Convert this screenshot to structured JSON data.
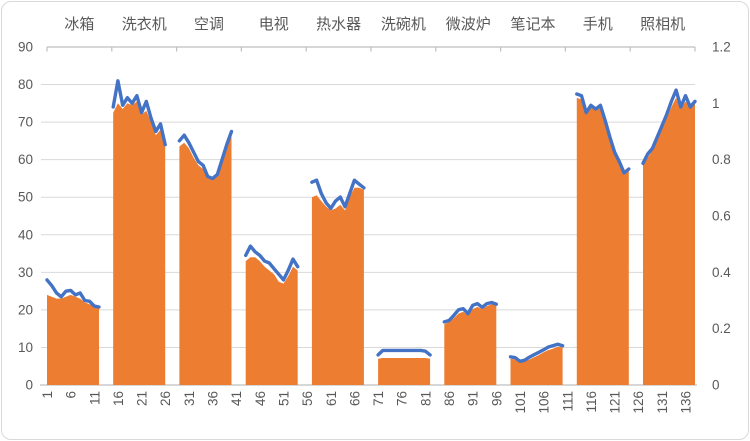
{
  "chart_data": {
    "type": "area",
    "subtype": "combo-area-left-axis-with-line-right-axis",
    "title": "",
    "legend": "none",
    "grid": "horizontal-on",
    "categories": [
      "冰箱",
      "洗衣机",
      "空调",
      "电视",
      "热水器",
      "洗碗机",
      "微波炉",
      "笔记本",
      "手机",
      "照相机"
    ],
    "x_axis": {
      "position": "bottom",
      "tick_labels": [
        "1",
        "6",
        "11",
        "16",
        "21",
        "26",
        "31",
        "36",
        "41",
        "46",
        "51",
        "56",
        "61",
        "66",
        "71",
        "76",
        "81",
        "86",
        "91",
        "96",
        "101",
        "106",
        "111",
        "116",
        "121",
        "126",
        "131",
        "136"
      ],
      "tick_label_rotation_deg": -90,
      "tick_interval": 5,
      "total_slots": 140,
      "points_per_category": 12,
      "gap_points_between_categories": 2
    },
    "category_axis": {
      "position": "top",
      "tick_marks": 11
    },
    "left_axis": {
      "min": 0,
      "max": 90,
      "step": 10,
      "tick_labels": [
        "90",
        "80",
        "70",
        "60",
        "50",
        "40",
        "30",
        "20",
        "10",
        "0"
      ]
    },
    "right_axis": {
      "min": 0,
      "max": 1.2,
      "step": 0.2,
      "tick_labels": [
        "1.2",
        "1",
        "0.8",
        "0.6",
        "0.4",
        "0.2",
        "0"
      ]
    },
    "colors": {
      "area": "#ED7D31",
      "line": "#4472C4",
      "gridline": "#D9D9D9",
      "axis": "#BFBFBF",
      "text": "#595959",
      "background": "#FFFFFF",
      "border": "#D9D9D9"
    },
    "series": [
      {
        "role": "area",
        "axis": "left",
        "color": "#ED7D31",
        "values_by_category": [
          [
            24,
            23.5,
            23,
            23,
            23.5,
            24,
            23.5,
            23,
            22,
            21.5,
            21,
            20.8
          ],
          [
            72.5,
            75,
            73.5,
            75,
            74.5,
            75.5,
            72,
            73,
            70,
            66.5,
            68,
            63.5
          ],
          [
            63.5,
            64.5,
            63,
            60.5,
            58.5,
            57.5,
            55,
            54.5,
            55.5,
            59,
            63,
            67
          ],
          [
            33,
            34,
            34,
            33,
            31.5,
            30.5,
            29.5,
            27.5,
            27,
            29,
            31.5,
            30.5
          ],
          [
            50,
            50.5,
            49,
            47.5,
            46.5,
            47,
            48,
            46.5,
            50,
            52.5,
            52.5,
            52
          ],
          [
            7,
            7.2,
            7.2,
            7.2,
            7.2,
            7.2,
            7.2,
            7.2,
            7.2,
            7.2,
            7.2,
            7
          ],
          [
            16.2,
            16.8,
            17.8,
            19,
            19.5,
            18.5,
            20.2,
            20.8,
            20.2,
            21,
            21.5,
            21.2
          ],
          [
            7,
            6.8,
            6,
            6.3,
            6.8,
            7.4,
            8,
            8.7,
            9.3,
            9.7,
            10.2,
            10
          ],
          [
            76.5,
            76,
            72,
            74,
            73,
            74,
            70,
            65.5,
            61.5,
            59,
            56,
            57
          ],
          [
            58.5,
            60.5,
            62.5,
            65,
            68,
            71,
            74,
            76.5,
            73.5,
            75.5,
            74,
            75.5
          ]
        ]
      },
      {
        "role": "line",
        "axis": "right",
        "color": "#4472C4",
        "values_by_category": [
          [
            0.373,
            0.353,
            0.327,
            0.313,
            0.333,
            0.336,
            0.32,
            0.327,
            0.3,
            0.297,
            0.28,
            0.277
          ],
          [
            0.987,
            1.08,
            0.993,
            1.02,
            1.0,
            1.027,
            0.967,
            1.007,
            0.947,
            0.9,
            0.927,
            0.853
          ],
          [
            0.867,
            0.887,
            0.86,
            0.827,
            0.793,
            0.78,
            0.74,
            0.733,
            0.747,
            0.8,
            0.853,
            0.9
          ],
          [
            0.46,
            0.493,
            0.473,
            0.46,
            0.44,
            0.433,
            0.413,
            0.393,
            0.373,
            0.407,
            0.447,
            0.42
          ],
          [
            0.72,
            0.727,
            0.68,
            0.647,
            0.627,
            0.653,
            0.667,
            0.633,
            0.68,
            0.727,
            0.713,
            0.7
          ],
          [
            0.107,
            0.123,
            0.123,
            0.123,
            0.123,
            0.123,
            0.123,
            0.123,
            0.123,
            0.123,
            0.12,
            0.107
          ],
          [
            0.224,
            0.229,
            0.247,
            0.267,
            0.271,
            0.253,
            0.283,
            0.289,
            0.276,
            0.289,
            0.293,
            0.287
          ],
          [
            0.1,
            0.097,
            0.084,
            0.088,
            0.099,
            0.108,
            0.116,
            0.125,
            0.135,
            0.14,
            0.145,
            0.139
          ],
          [
            1.033,
            1.027,
            0.967,
            0.993,
            0.98,
            0.993,
            0.94,
            0.88,
            0.827,
            0.793,
            0.753,
            0.767
          ],
          [
            0.787,
            0.82,
            0.84,
            0.88,
            0.92,
            0.96,
            1.007,
            1.047,
            0.987,
            1.027,
            0.987,
            1.007
          ]
        ]
      }
    ]
  }
}
